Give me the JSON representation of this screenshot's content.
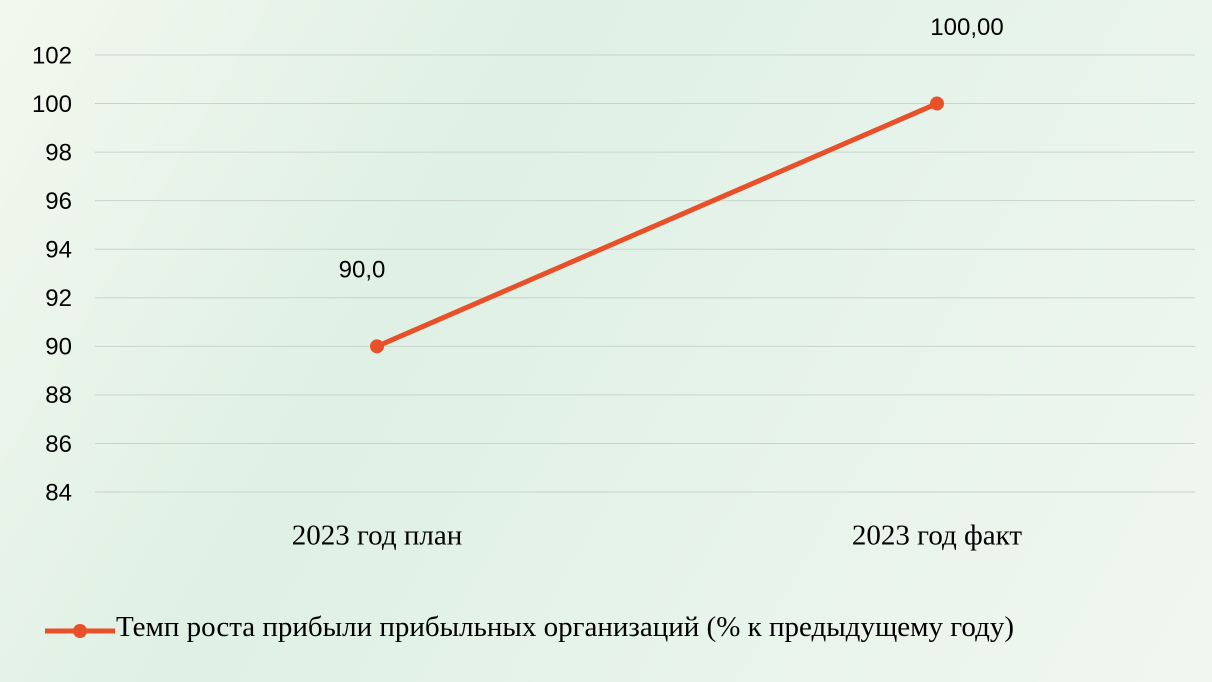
{
  "chart_data": {
    "type": "line",
    "categories": [
      "2023 год план",
      "2023 год факт"
    ],
    "series": [
      {
        "name": "Темп роста прибыли прибыльных организаций (% к предыдущему году)",
        "color": "#e8502a",
        "values": [
          90,
          100
        ],
        "value_labels": [
          "90,0",
          "100,00"
        ]
      }
    ],
    "ylim": [
      84,
      102
    ],
    "yticks": [
      84,
      86,
      88,
      90,
      92,
      94,
      96,
      98,
      100,
      102
    ],
    "grid": true,
    "legend": "bottom"
  }
}
